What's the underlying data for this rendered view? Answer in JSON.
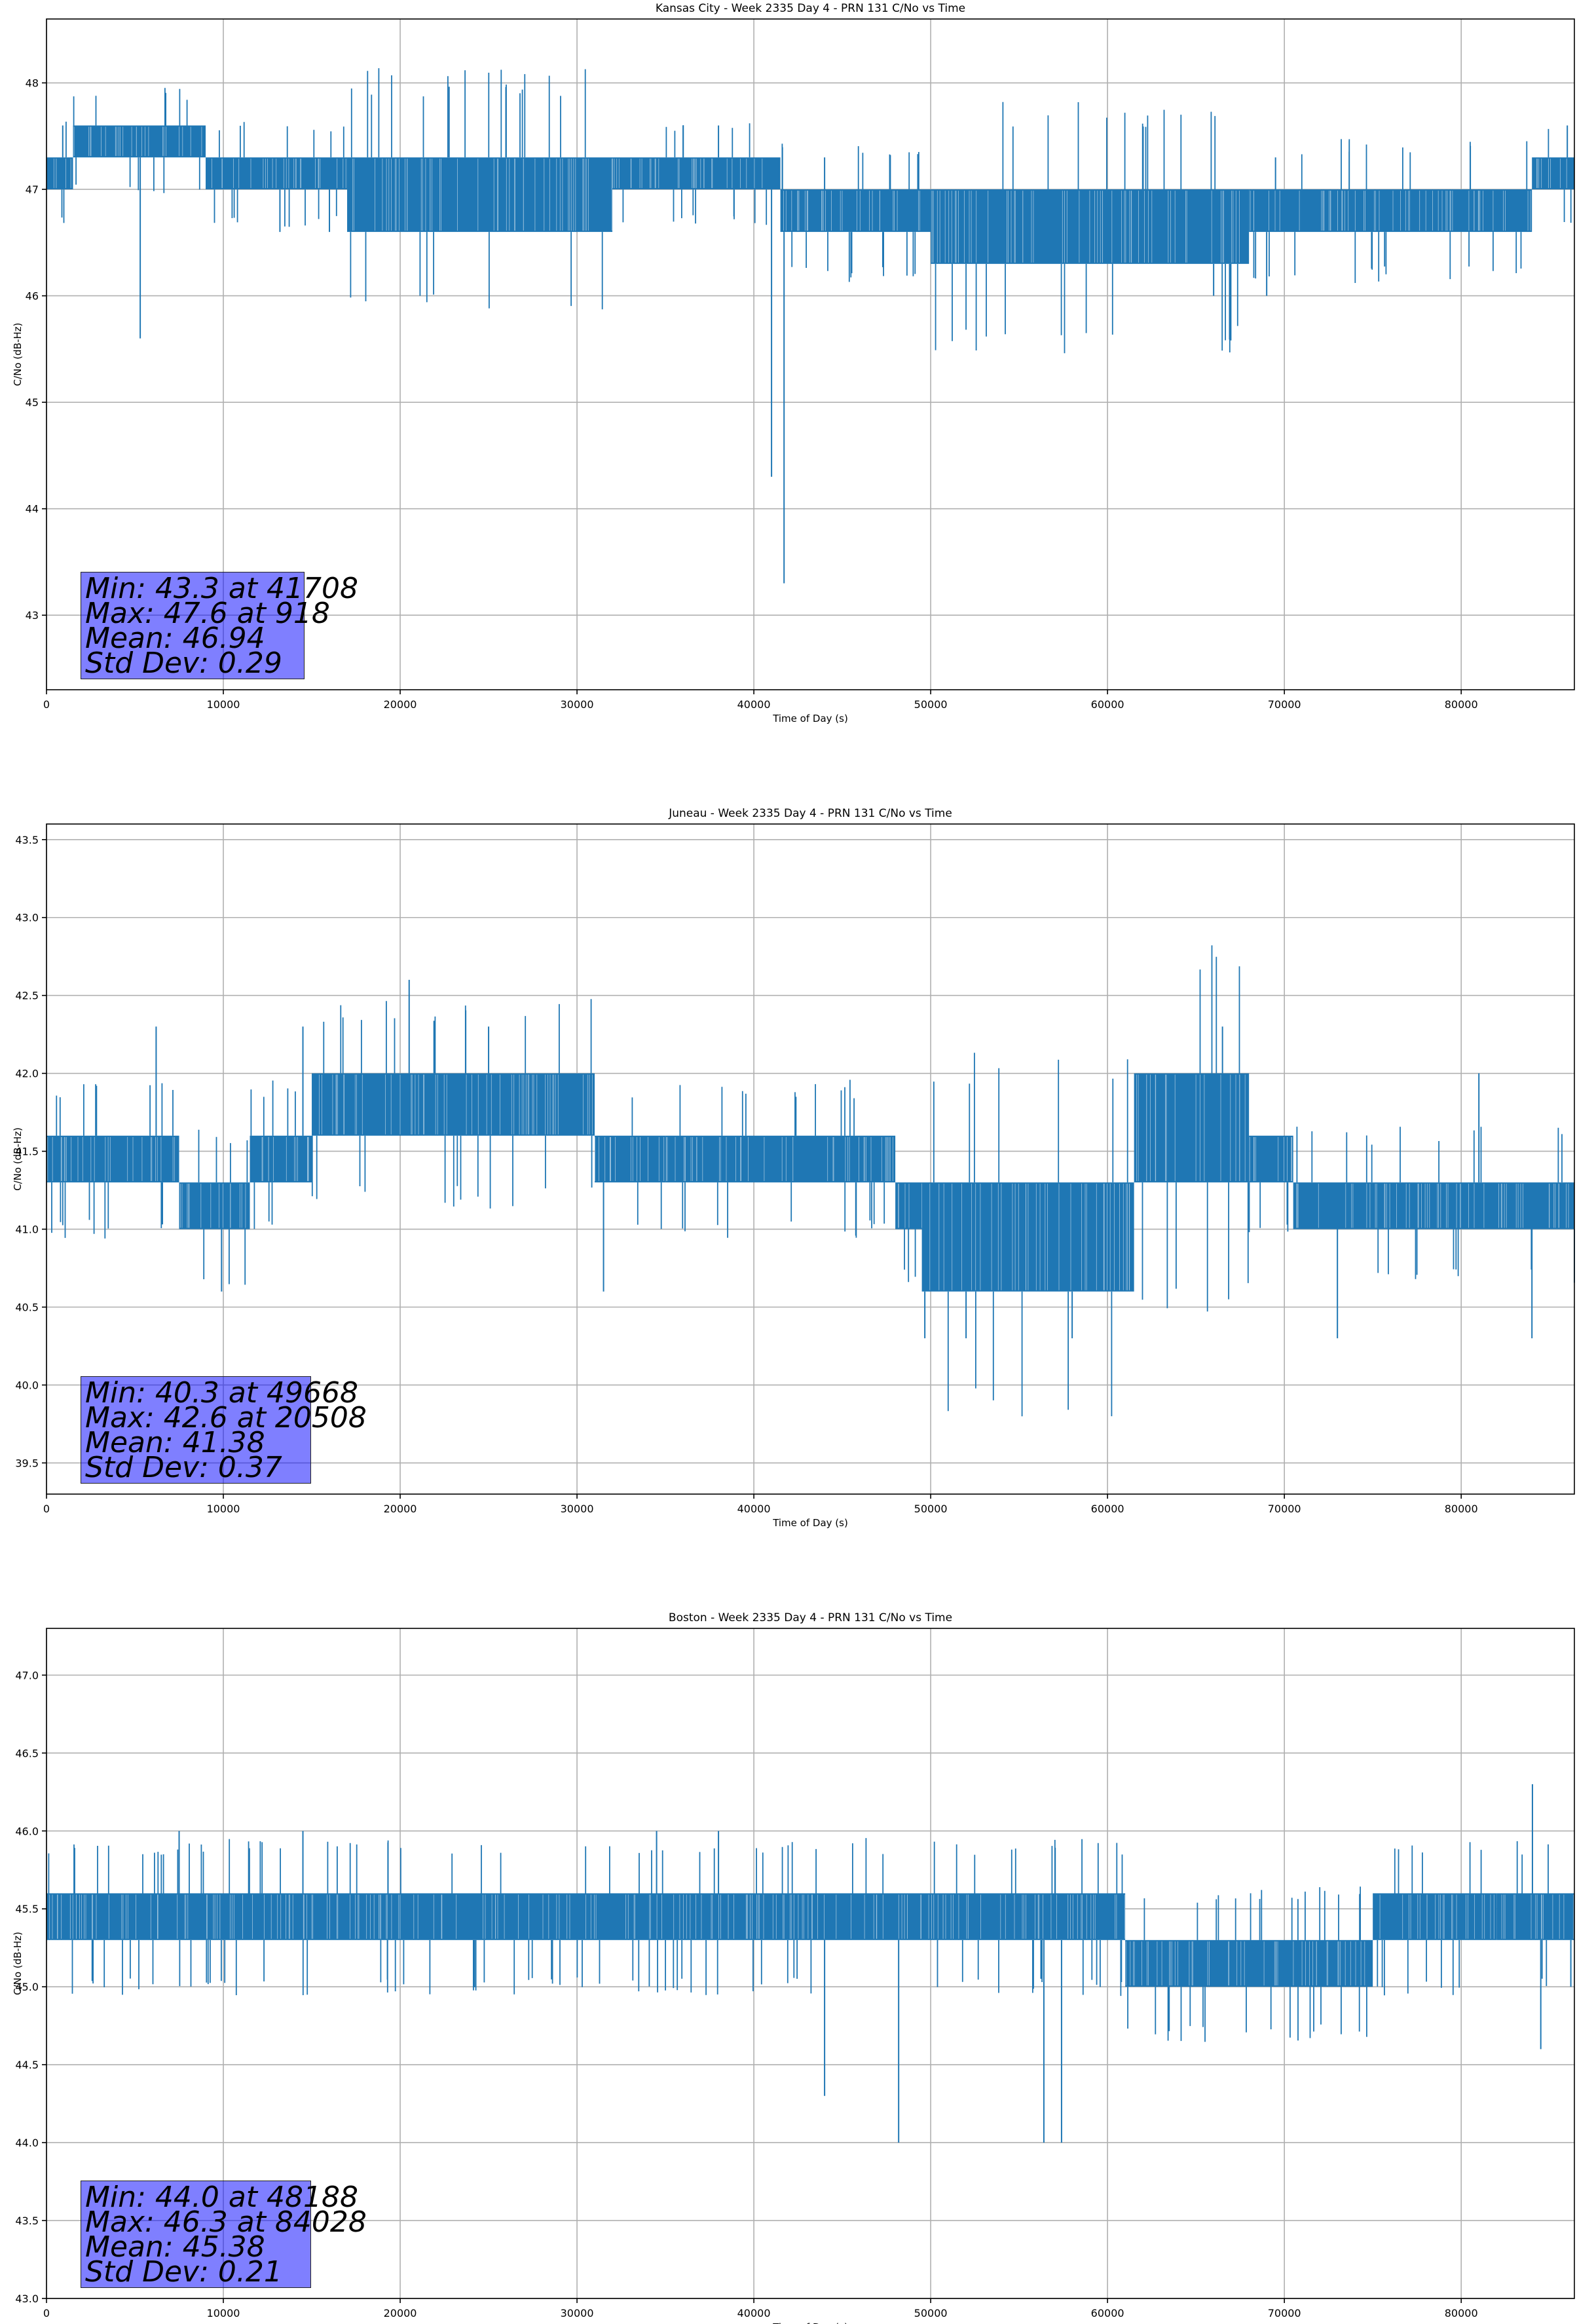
{
  "chart_data": [
    {
      "type": "line",
      "title": "Kansas City - Week 2335 Day 4 - PRN 131 C/No vs Time",
      "xlabel": "Time of Day (s)",
      "ylabel": "C/No (dB-Hz)",
      "xlim": [
        0,
        86400
      ],
      "ylim": [
        42.3,
        48.6
      ],
      "xticks": [
        0,
        10000,
        20000,
        30000,
        40000,
        50000,
        60000,
        70000,
        80000
      ],
      "yticks": [
        43,
        44,
        45,
        46,
        47,
        48
      ],
      "grid": true,
      "color": "#1f77b4",
      "segments": [
        {
          "x": [
            0,
            1500
          ],
          "lo": 47.0,
          "hi": 47.3
        },
        {
          "x": [
            1500,
            9000
          ],
          "lo": 47.3,
          "hi": 47.6
        },
        {
          "x": [
            9000,
            17000
          ],
          "lo": 47.0,
          "hi": 47.3
        },
        {
          "x": [
            17000,
            32000
          ],
          "lo": 46.6,
          "hi": 47.3
        },
        {
          "x": [
            32000,
            41500
          ],
          "lo": 47.0,
          "hi": 47.3
        },
        {
          "x": [
            41500,
            50000
          ],
          "lo": 46.6,
          "hi": 47.0
        },
        {
          "x": [
            50000,
            68000
          ],
          "lo": 46.3,
          "hi": 47.0
        },
        {
          "x": [
            68000,
            84000
          ],
          "lo": 46.6,
          "hi": 47.0
        },
        {
          "x": [
            84000,
            86400
          ],
          "lo": 47.0,
          "hi": 47.3
        }
      ],
      "spikes": [
        {
          "x": 918,
          "y": 47.6
        },
        {
          "x": 5300,
          "y": 45.6
        },
        {
          "x": 13200,
          "y": 46.6
        },
        {
          "x": 16000,
          "y": 46.6
        },
        {
          "x": 36000,
          "y": 47.6
        },
        {
          "x": 38000,
          "y": 47.6
        },
        {
          "x": 41000,
          "y": 44.3
        },
        {
          "x": 41708,
          "y": 43.3
        },
        {
          "x": 44000,
          "y": 47.3
        },
        {
          "x": 66000,
          "y": 46.0
        },
        {
          "x": 69000,
          "y": 46.0
        },
        {
          "x": 69500,
          "y": 47.3
        },
        {
          "x": 86000,
          "y": 47.6
        }
      ],
      "stats": [
        "Min: 43.3 at 41708",
        "Max: 47.6 at 918",
        "Mean: 46.94",
        "Std Dev: 0.29"
      ]
    },
    {
      "type": "line",
      "title": "Juneau - Week 2335 Day 4 - PRN 131 C/No vs Time",
      "xlabel": "Time of Day (s)",
      "ylabel": "C/No (dB-Hz)",
      "xlim": [
        0,
        86400
      ],
      "ylim": [
        39.3,
        43.6
      ],
      "xticks": [
        0,
        10000,
        20000,
        30000,
        40000,
        50000,
        60000,
        70000,
        80000
      ],
      "yticks": [
        39.5,
        40.0,
        40.5,
        41.0,
        41.5,
        42.0,
        42.5,
        43.0,
        43.5
      ],
      "grid": true,
      "color": "#1f77b4",
      "segments": [
        {
          "x": [
            0,
            7500
          ],
          "lo": 41.3,
          "hi": 41.6
        },
        {
          "x": [
            7500,
            11500
          ],
          "lo": 41.0,
          "hi": 41.3
        },
        {
          "x": [
            11500,
            15000
          ],
          "lo": 41.3,
          "hi": 41.6
        },
        {
          "x": [
            15000,
            31000
          ],
          "lo": 41.6,
          "hi": 42.0
        },
        {
          "x": [
            31000,
            35000
          ],
          "lo": 41.3,
          "hi": 41.6
        },
        {
          "x": [
            35000,
            48000
          ],
          "lo": 41.3,
          "hi": 41.6
        },
        {
          "x": [
            48000,
            49500
          ],
          "lo": 41.0,
          "hi": 41.3
        },
        {
          "x": [
            49500,
            61500
          ],
          "lo": 40.6,
          "hi": 41.3
        },
        {
          "x": [
            61500,
            68000
          ],
          "lo": 41.3,
          "hi": 42.0
        },
        {
          "x": [
            68000,
            70500
          ],
          "lo": 41.3,
          "hi": 41.6
        },
        {
          "x": [
            70500,
            86400
          ],
          "lo": 41.0,
          "hi": 41.3
        }
      ],
      "spikes": [
        {
          "x": 6200,
          "y": 42.3
        },
        {
          "x": 9900,
          "y": 40.6
        },
        {
          "x": 14500,
          "y": 42.3
        },
        {
          "x": 20508,
          "y": 42.6
        },
        {
          "x": 25000,
          "y": 42.3
        },
        {
          "x": 31500,
          "y": 40.6
        },
        {
          "x": 49668,
          "y": 40.3
        },
        {
          "x": 52000,
          "y": 40.3
        },
        {
          "x": 58000,
          "y": 40.3
        },
        {
          "x": 66500,
          "y": 42.3
        },
        {
          "x": 73000,
          "y": 40.3
        },
        {
          "x": 81000,
          "y": 42.0
        },
        {
          "x": 84000,
          "y": 40.3
        }
      ],
      "stats": [
        "Min: 40.3 at 49668",
        "Max: 42.6 at 20508",
        "Mean: 41.38",
        "Std Dev: 0.37"
      ]
    },
    {
      "type": "line",
      "title": "Boston - Week 2335 Day 4 - PRN 131 C/No vs Time",
      "xlabel": "Time of Day (s)",
      "ylabel": "C/No (dB-Hz)",
      "xlim": [
        0,
        86400
      ],
      "ylim": [
        43.0,
        47.3
      ],
      "xticks": [
        0,
        10000,
        20000,
        30000,
        40000,
        50000,
        60000,
        70000,
        80000
      ],
      "yticks": [
        43.0,
        43.5,
        44.0,
        44.5,
        45.0,
        45.5,
        46.0,
        46.5,
        47.0
      ],
      "grid": true,
      "color": "#1f77b4",
      "segments": [
        {
          "x": [
            0,
            61000
          ],
          "lo": 45.3,
          "hi": 45.6
        },
        {
          "x": [
            61000,
            75000
          ],
          "lo": 45.0,
          "hi": 45.3
        },
        {
          "x": [
            75000,
            82000
          ],
          "lo": 45.3,
          "hi": 45.6
        },
        {
          "x": [
            82000,
            86400
          ],
          "lo": 45.3,
          "hi": 45.6
        }
      ],
      "spikes": [
        {
          "x": 7500,
          "y": 46.0
        },
        {
          "x": 14500,
          "y": 46.0
        },
        {
          "x": 34500,
          "y": 46.0
        },
        {
          "x": 38000,
          "y": 46.0
        },
        {
          "x": 44000,
          "y": 44.3
        },
        {
          "x": 48188,
          "y": 44.0
        },
        {
          "x": 56400,
          "y": 44.0
        },
        {
          "x": 57400,
          "y": 44.0
        },
        {
          "x": 84028,
          "y": 46.3
        },
        {
          "x": 84500,
          "y": 44.6
        },
        {
          "x": 86200,
          "y": 45.0
        }
      ],
      "stats": [
        "Min: 44.0 at 48188",
        "Max: 46.3 at 84028",
        "Mean: 45.38",
        "Std Dev: 0.21"
      ]
    }
  ]
}
